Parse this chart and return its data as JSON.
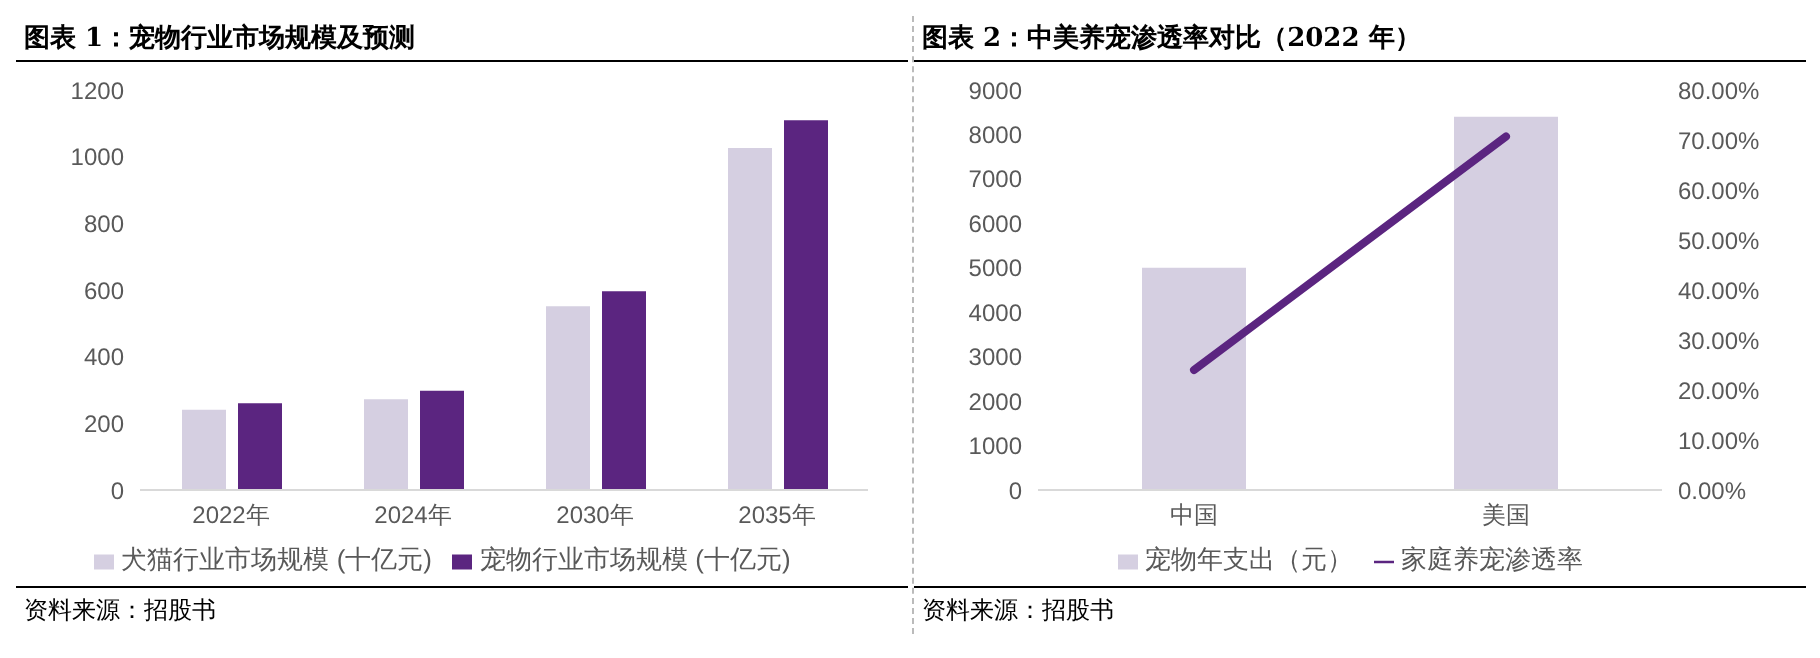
{
  "chart_data": [
    {
      "type": "bar",
      "title": "图表 1：宠物行业市场规模及预测",
      "categories": [
        "2022年",
        "2024年",
        "2030年",
        "2035年"
      ],
      "series": [
        {
          "name": "犬猫行业市场规模 (十亿元)",
          "color": "#d5cfe1",
          "values": [
            241,
            272,
            551,
            1026
          ]
        },
        {
          "name": "宠物行业市场规模 (十亿元)",
          "color": "#5b2580",
          "values": [
            260,
            298,
            596,
            1109
          ]
        }
      ],
      "ylim": [
        0,
        1200
      ],
      "yticks": [
        0,
        200,
        400,
        600,
        800,
        1000,
        1200
      ],
      "legend": "bottom",
      "annotations": [
        "资料来源：招股书"
      ]
    },
    {
      "type": "bar",
      "title": "图表 2：中美养宠渗透率对比（2022 年）",
      "categories": [
        "中国",
        "美国"
      ],
      "series": [
        {
          "name": "宠物年支出（元）",
          "color": "#d5cfe1",
          "values": [
            5000,
            8400
          ]
        },
        {
          "name": "家庭养宠渗透率",
          "type": "line",
          "axis": "y2",
          "color": "#5b2580",
          "values": [
            24,
            70.7
          ]
        }
      ],
      "ylim": [
        0,
        9000
      ],
      "yticks": [
        0,
        1000,
        2000,
        3000,
        4000,
        5000,
        6000,
        7000,
        8000,
        9000
      ],
      "y2lim": [
        0,
        80
      ],
      "y2ticks": [
        {
          "value": 0,
          "label": "0.00%"
        },
        {
          "value": 10,
          "label": "10.00%"
        },
        {
          "value": 20,
          "label": "20.00%"
        },
        {
          "value": 30,
          "label": "30.00%"
        },
        {
          "value": 40,
          "label": "40.00%"
        },
        {
          "value": 50,
          "label": "50.00%"
        },
        {
          "value": 60,
          "label": "60.00%"
        },
        {
          "value": 70,
          "label": "70.00%"
        },
        {
          "value": 80,
          "label": "80.00%"
        }
      ],
      "legend": "bottom",
      "annotations": [
        "资料来源：招股书"
      ]
    }
  ]
}
